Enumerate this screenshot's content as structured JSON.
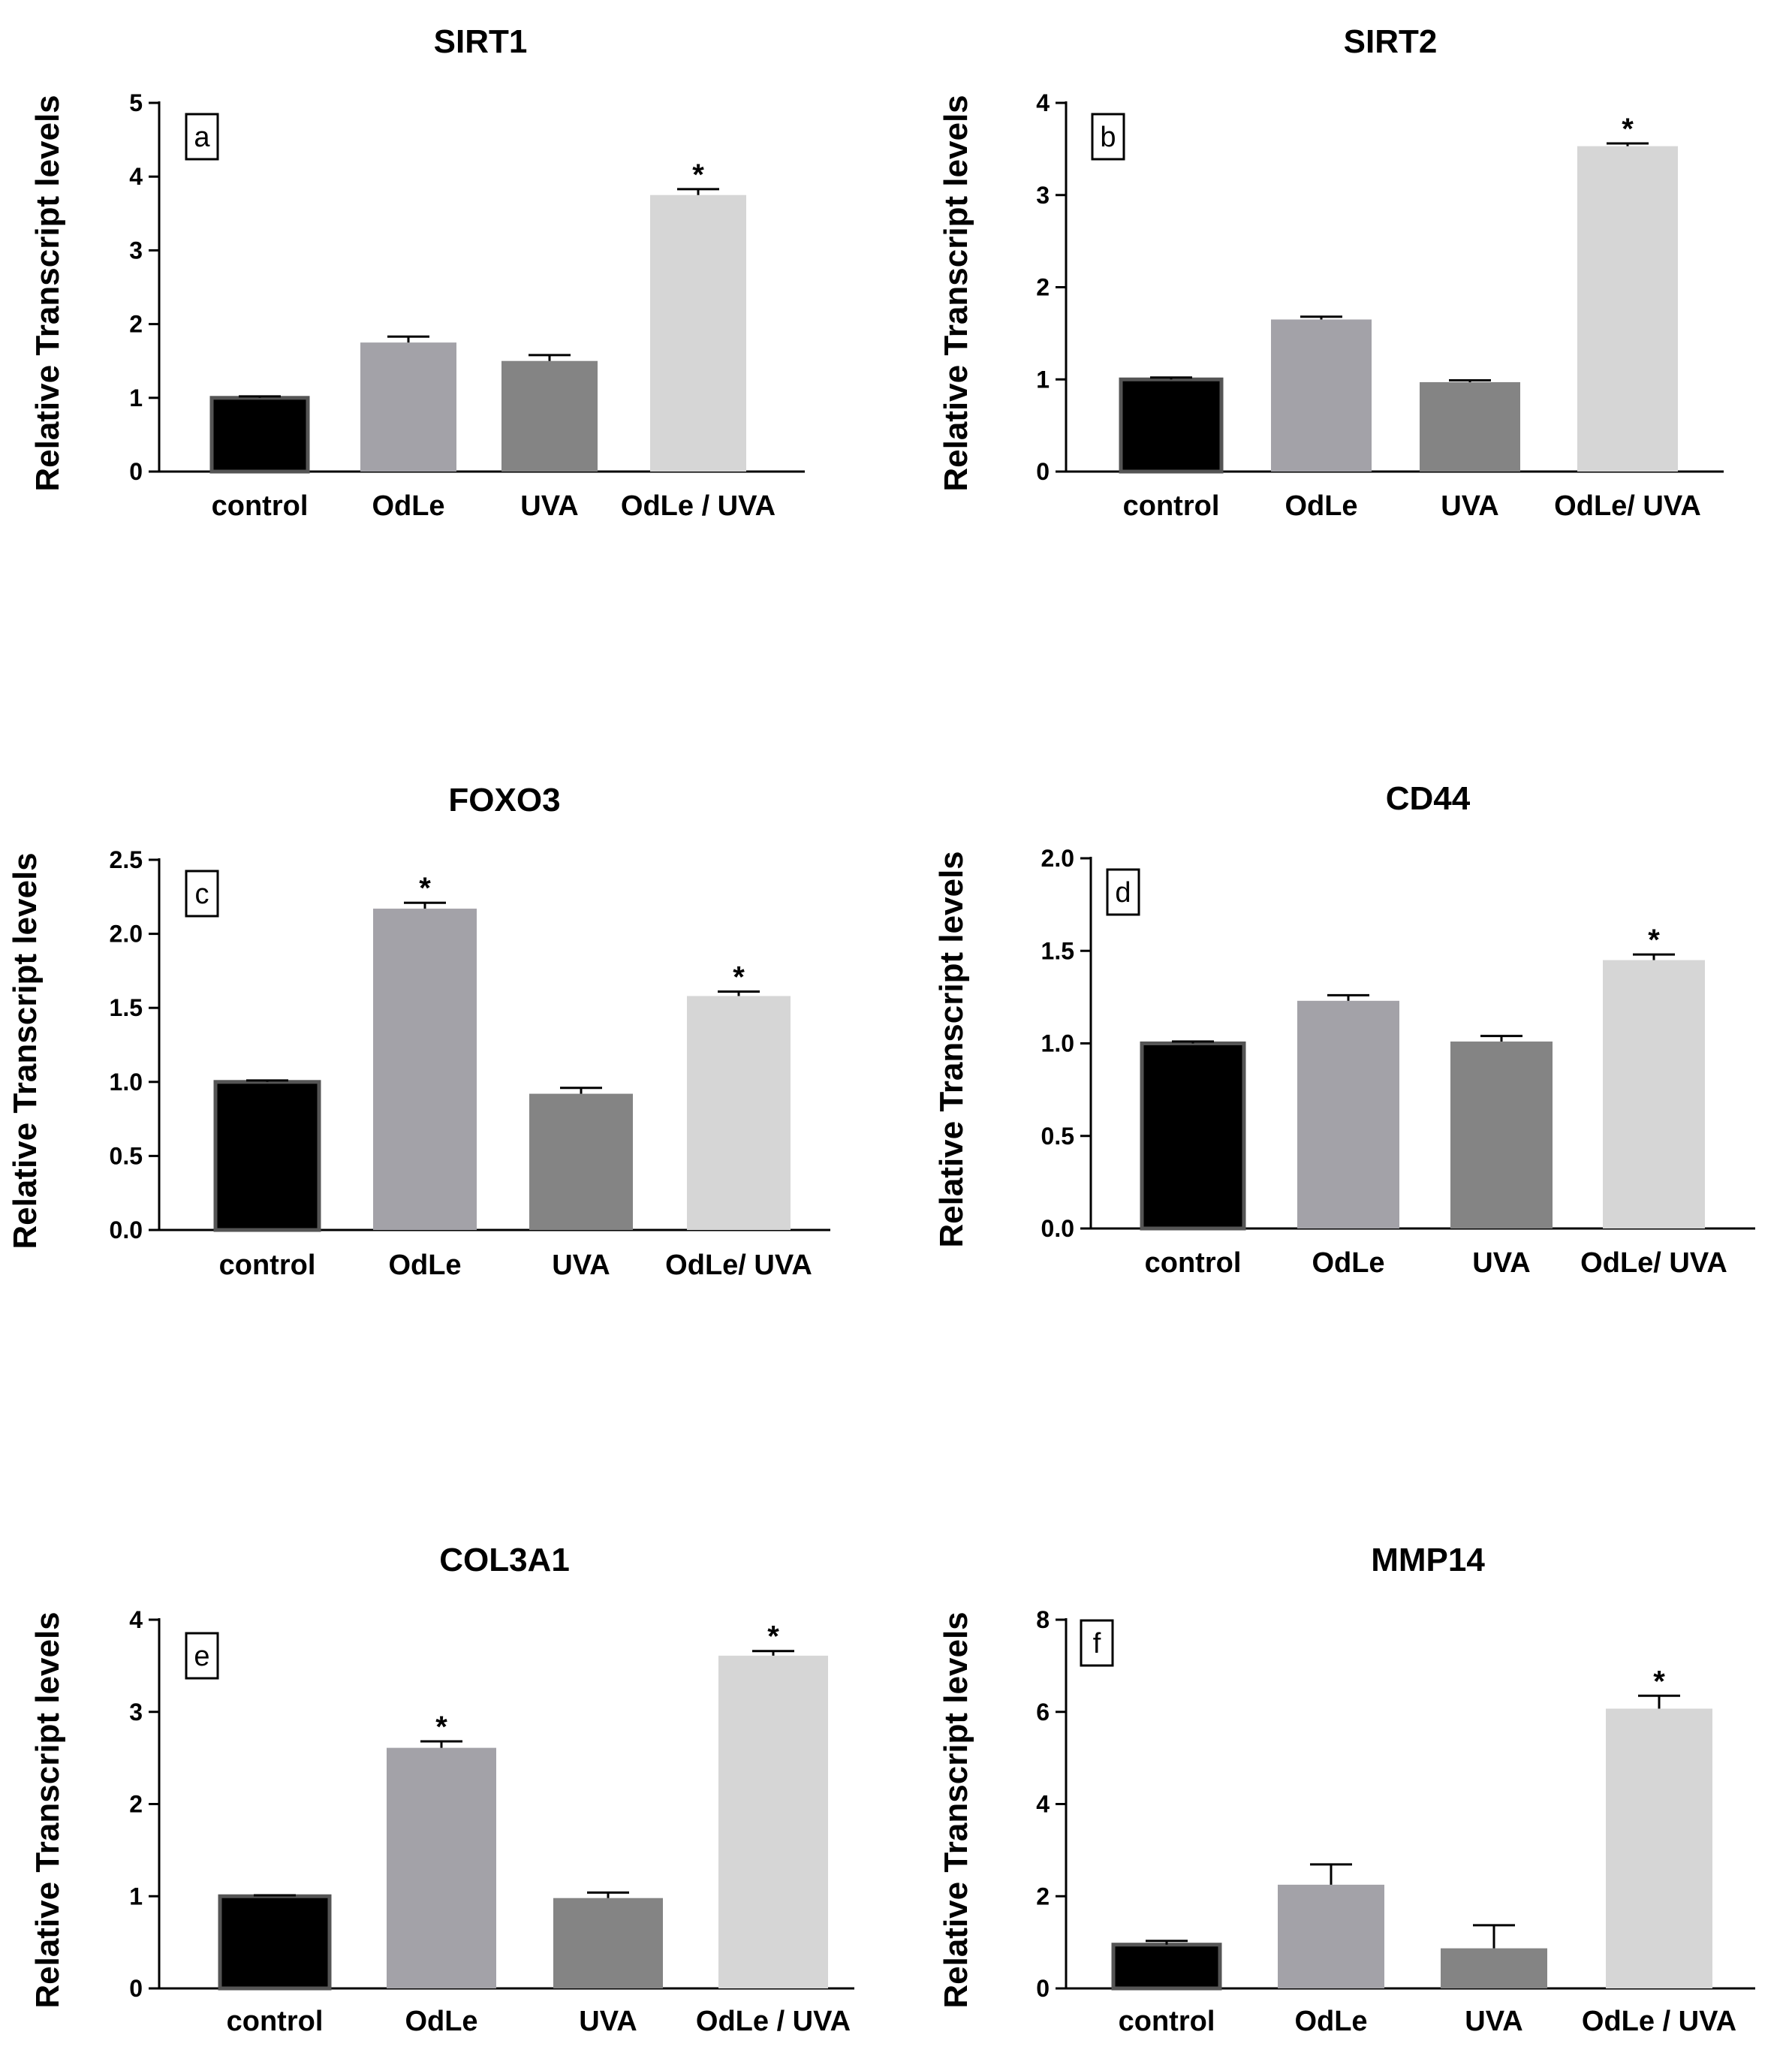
{
  "figure": {
    "y_axis_label": "Relative Transcript levels",
    "colors": {
      "control": "#000000",
      "OdLe": "#a3a2a8",
      "UVA": "#848484",
      "OdLe_UVA": "#d6d6d6",
      "control_border": "#555555"
    }
  },
  "chart_data": [
    {
      "panel": "a",
      "type": "bar",
      "title": "SIRT1",
      "ylabel": "Relative Transcript levels",
      "categories": [
        "control",
        "OdLe",
        "UVA",
        "OdLe / UVA"
      ],
      "values": [
        1.0,
        1.75,
        1.5,
        3.75
      ],
      "errors": [
        0.02,
        0.08,
        0.08,
        0.08
      ],
      "significance": [
        "",
        "",
        "",
        "*"
      ],
      "ylim": [
        0,
        5
      ],
      "yticks": [
        "0",
        "1",
        "2",
        "3",
        "4",
        "5"
      ]
    },
    {
      "panel": "b",
      "type": "bar",
      "title": "SIRT2",
      "ylabel": "Relative Transcript levels",
      "categories": [
        "control",
        "OdLe",
        "UVA",
        "OdLe/ UVA"
      ],
      "values": [
        1.0,
        1.65,
        0.97,
        3.53
      ],
      "errors": [
        0.02,
        0.03,
        0.02,
        0.03
      ],
      "significance": [
        "",
        "",
        "",
        "*"
      ],
      "ylim": [
        0,
        4
      ],
      "yticks": [
        "0",
        "1",
        "2",
        "3",
        "4"
      ]
    },
    {
      "panel": "c",
      "type": "bar",
      "title": "FOXO3",
      "ylabel": "Relative Transcript levels",
      "categories": [
        "control",
        "OdLe",
        "UVA",
        "OdLe/ UVA"
      ],
      "values": [
        1.0,
        2.17,
        0.92,
        1.58
      ],
      "errors": [
        0.01,
        0.04,
        0.04,
        0.03
      ],
      "significance": [
        "",
        "*",
        "",
        "*"
      ],
      "ylim": [
        0,
        2.5
      ],
      "yticks": [
        "0.0",
        "0.5",
        "1.0",
        "1.5",
        "2.0",
        "2.5"
      ]
    },
    {
      "panel": "d",
      "type": "bar",
      "title": "CD44",
      "ylabel": "Relative Transcript levels",
      "categories": [
        "control",
        "OdLe",
        "UVA",
        "OdLe/ UVA"
      ],
      "values": [
        1.0,
        1.23,
        1.01,
        1.45
      ],
      "errors": [
        0.01,
        0.03,
        0.03,
        0.03
      ],
      "significance": [
        "",
        "",
        "",
        "*"
      ],
      "ylim": [
        0,
        2.0
      ],
      "yticks": [
        "0.0",
        "0.5",
        "1.0",
        "1.5",
        "2.0"
      ]
    },
    {
      "panel": "e",
      "type": "bar",
      "title": "COL3A1",
      "ylabel": "Relative Transcript levels",
      "categories": [
        "control",
        "OdLe",
        "UVA",
        "OdLe / UVA"
      ],
      "values": [
        1.0,
        2.61,
        0.98,
        3.61
      ],
      "errors": [
        0.01,
        0.07,
        0.06,
        0.05
      ],
      "significance": [
        "",
        "*",
        "",
        "*"
      ],
      "ylim": [
        0,
        4
      ],
      "yticks": [
        "0",
        "1",
        "2",
        "3",
        "4"
      ]
    },
    {
      "panel": "f",
      "type": "bar",
      "title": "MMP14",
      "ylabel": "Relative Transcript levels",
      "categories": [
        "control",
        "OdLe",
        "UVA",
        "OdLe / UVA"
      ],
      "values": [
        0.95,
        2.25,
        0.87,
        6.07
      ],
      "errors": [
        0.08,
        0.44,
        0.5,
        0.28
      ],
      "significance": [
        "",
        "",
        "",
        "*"
      ],
      "ylim": [
        0,
        8
      ],
      "yticks": [
        "0",
        "2",
        "4",
        "6",
        "8"
      ]
    }
  ]
}
